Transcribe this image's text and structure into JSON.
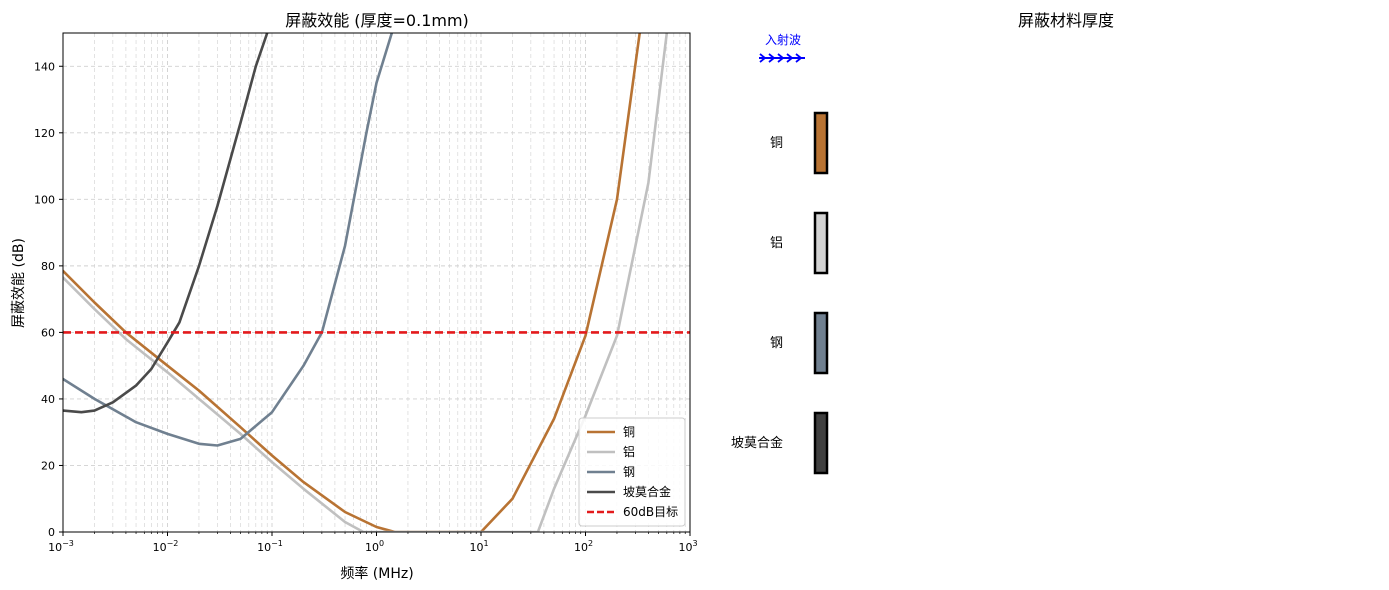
{
  "chart_data": [
    {
      "type": "line",
      "title": "屏蔽效能 (厚度=0.1mm)",
      "xlabel": "频率 (MHz)",
      "ylabel": "屏蔽效能 (dB)",
      "xscale": "log",
      "xlim": [
        0.001,
        1000
      ],
      "ylim": [
        0,
        150
      ],
      "x_ticks": [
        {
          "value": 0.001,
          "base": "10",
          "exp": "−3"
        },
        {
          "value": 0.01,
          "base": "10",
          "exp": "−2"
        },
        {
          "value": 0.1,
          "base": "10",
          "exp": "−1"
        },
        {
          "value": 1,
          "base": "10",
          "exp": "0"
        },
        {
          "value": 10,
          "base": "10",
          "exp": "1"
        },
        {
          "value": 100,
          "base": "10",
          "exp": "2"
        },
        {
          "value": 1000,
          "base": "10",
          "exp": "3"
        }
      ],
      "y_ticks": [
        "0",
        "20",
        "40",
        "60",
        "80",
        "100",
        "120",
        "140"
      ],
      "grid": true,
      "legend_position": "lower-right",
      "series": [
        {
          "name": "铜",
          "color": "#b87333",
          "style": "solid",
          "x": [
            0.001,
            0.002,
            0.004,
            0.01,
            0.02,
            0.05,
            0.1,
            0.2,
            0.5,
            1,
            1.5,
            10,
            20,
            50,
            100,
            200,
            330
          ],
          "y": [
            78.5,
            69,
            60,
            50,
            42.5,
            31.5,
            23,
            15,
            6,
            1.5,
            0,
            0,
            10,
            34,
            59,
            100,
            150
          ]
        },
        {
          "name": "铝",
          "color": "#c0c0c0",
          "style": "solid",
          "x": [
            0.001,
            0.002,
            0.004,
            0.01,
            0.02,
            0.05,
            0.1,
            0.2,
            0.5,
            0.75,
            35,
            50,
            100,
            200,
            400,
            600
          ],
          "y": [
            76.5,
            67,
            58,
            48,
            40,
            29.5,
            21,
            13,
            3,
            0,
            0,
            13,
            35,
            59,
            105,
            150
          ]
        },
        {
          "name": "钢",
          "color": "#708090",
          "style": "solid",
          "x": [
            0.001,
            0.002,
            0.005,
            0.01,
            0.02,
            0.03,
            0.05,
            0.1,
            0.2,
            0.3,
            0.5,
            0.8,
            1.0,
            1.4
          ],
          "y": [
            46,
            40,
            33,
            29.5,
            26.5,
            26,
            28,
            36,
            50,
            60,
            86,
            120,
            135,
            150
          ]
        },
        {
          "name": "坡莫合金",
          "color": "#4a4a4a",
          "style": "solid",
          "x": [
            0.001,
            0.0015,
            0.002,
            0.003,
            0.005,
            0.007,
            0.01,
            0.013,
            0.02,
            0.03,
            0.05,
            0.07,
            0.09
          ],
          "y": [
            36.5,
            36,
            36.5,
            39,
            44,
            49,
            57,
            63,
            80,
            98,
            123,
            140,
            150
          ]
        },
        {
          "name": "60dB目标",
          "color": "#e31a1c",
          "style": "dashed",
          "x": [
            0.001,
            1000
          ],
          "y": [
            60,
            60
          ]
        }
      ]
    },
    {
      "type": "diagram",
      "title": "屏蔽材料厚度",
      "incident_label": "入射波",
      "incident_color": "#0000ff",
      "materials": [
        {
          "name": "铜",
          "color": "#b87333"
        },
        {
          "name": "铝",
          "color": "#d3d3d3"
        },
        {
          "name": "钢",
          "color": "#708090"
        },
        {
          "name": "坡莫合金",
          "color": "#404040"
        }
      ]
    }
  ]
}
